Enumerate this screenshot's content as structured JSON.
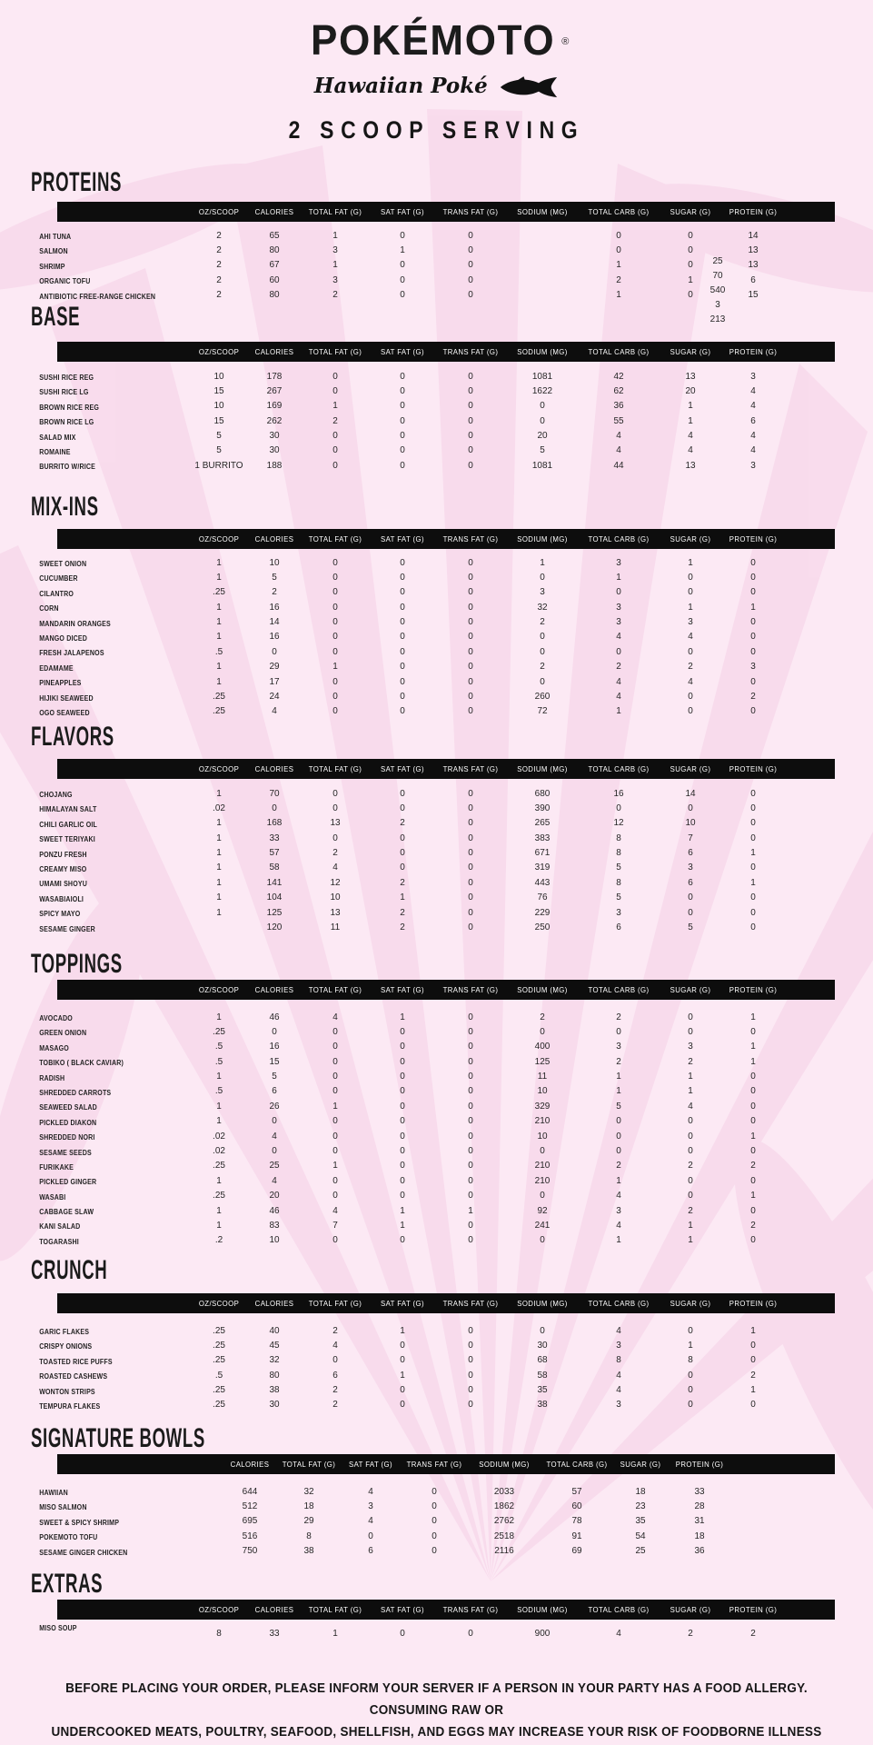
{
  "header": {
    "brand": "POKÉMOTO",
    "registered": "®",
    "tagline": "Hawaiian Poké",
    "serving_title": "2 SCOOP SERVING"
  },
  "icons": {
    "logo_fish": "tuna-fish-icon"
  },
  "colors": {
    "background": "#fce9f4",
    "watermark": "#f5cfe6",
    "header_bar": "#0d0d0d",
    "text": "#1b1b1b"
  },
  "column_sets": {
    "standard": [
      "OZ/SCOOP",
      "CALORIES",
      "TOTAL FAT (G)",
      "SAT FAT (G)",
      "TRANS FAT (G)",
      "SODIUM (MG)",
      "TOTAL CARB (G)",
      "SUGAR (G)",
      "PROTEIN (G)"
    ],
    "bowls": [
      "CALORIES",
      "TOTAL FAT (G)",
      "SAT FAT (G)",
      "TRANS FAT (G)",
      "SODIUM (MG)",
      "TOTAL CARB (G)",
      "SUGAR (G)",
      "PROTEIN (G)"
    ]
  },
  "sections": [
    {
      "id": "proteins",
      "title": "PROTEINS",
      "column_set": "standard",
      "rows": [
        [
          "AHI TUNA",
          "2",
          "65",
          "1",
          "0",
          "0",
          "",
          "0",
          "0",
          "14"
        ],
        [
          "SALMON",
          "2",
          "80",
          "3",
          "1",
          "0",
          "",
          "0",
          "0",
          "13"
        ],
        [
          "SHRIMP",
          "2",
          "67",
          "1",
          "0",
          "0",
          "",
          "1",
          "0",
          "13"
        ],
        [
          "ORGANIC TOFU",
          "2",
          "60",
          "3",
          "0",
          "0",
          "",
          "2",
          "1",
          "6"
        ],
        [
          "ANTIBIOTIC FREE-RANGE CHICKEN",
          "2",
          "80",
          "2",
          "0",
          "0",
          "",
          "1",
          "0",
          "15"
        ]
      ],
      "stray_values": [
        "25",
        "70",
        "540",
        "3",
        "213"
      ]
    },
    {
      "id": "base",
      "title": "BASE",
      "column_set": "standard",
      "rows": [
        [
          "SUSHI RICE REG",
          "10",
          "178",
          "0",
          "0",
          "0",
          "1081",
          "42",
          "13",
          "3"
        ],
        [
          "SUSHI RICE LG",
          "15",
          "267",
          "0",
          "0",
          "0",
          "1622",
          "62",
          "20",
          "4"
        ],
        [
          "BROWN RICE REG",
          "10",
          "169",
          "1",
          "0",
          "0",
          "0",
          "36",
          "1",
          "4"
        ],
        [
          "BROWN RICE LG",
          "15",
          "262",
          "2",
          "0",
          "0",
          "0",
          "55",
          "1",
          "6"
        ],
        [
          "SALAD MIX",
          "5",
          "30",
          "0",
          "0",
          "0",
          "20",
          "4",
          "4",
          "4"
        ],
        [
          "ROMAINE",
          "5",
          "30",
          "0",
          "0",
          "0",
          "5",
          "4",
          "4",
          "4"
        ],
        [
          "BURRITO W/RICE",
          "1 BURRITO",
          "188",
          "0",
          "0",
          "0",
          "1081",
          "44",
          "13",
          "3"
        ]
      ]
    },
    {
      "id": "mixins",
      "title": "MIX-INS",
      "column_set": "standard",
      "rows": [
        [
          "SWEET ONION",
          "1",
          "10",
          "0",
          "0",
          "0",
          "1",
          "3",
          "1",
          "0"
        ],
        [
          "CUCUMBER",
          "1",
          "5",
          "0",
          "0",
          "0",
          "0",
          "1",
          "0",
          "0"
        ],
        [
          "CILANTRO",
          ".25",
          "2",
          "0",
          "0",
          "0",
          "3",
          "0",
          "0",
          "0"
        ],
        [
          "CORN",
          "1",
          "16",
          "0",
          "0",
          "0",
          "32",
          "3",
          "1",
          "1"
        ],
        [
          "MANDARIN ORANGES",
          "1",
          "14",
          "0",
          "0",
          "0",
          "2",
          "3",
          "3",
          "0"
        ],
        [
          "MANGO DICED",
          "1",
          "16",
          "0",
          "0",
          "0",
          "0",
          "4",
          "4",
          "0"
        ],
        [
          "FRESH JALAPENOS",
          ".5",
          "0",
          "0",
          "0",
          "0",
          "0",
          "0",
          "0",
          "0"
        ],
        [
          "EDAMAME",
          "1",
          "29",
          "1",
          "0",
          "0",
          "2",
          "2",
          "2",
          "3"
        ],
        [
          "PINEAPPLES",
          "1",
          "17",
          "0",
          "0",
          "0",
          "0",
          "4",
          "4",
          "0"
        ],
        [
          "HIJIKI SEAWEED",
          ".25",
          "24",
          "0",
          "0",
          "0",
          "260",
          "4",
          "0",
          "2"
        ],
        [
          "OGO SEAWEED",
          ".25",
          "4",
          "0",
          "0",
          "0",
          "72",
          "1",
          "0",
          "0"
        ]
      ]
    },
    {
      "id": "flavors",
      "title": "FLAVORS",
      "column_set": "standard",
      "rows": [
        [
          "CHOJANG",
          "1",
          "70",
          "0",
          "0",
          "0",
          "680",
          "16",
          "14",
          "0"
        ],
        [
          "HIMALAYAN SALT",
          ".02",
          "0",
          "0",
          "0",
          "0",
          "390",
          "0",
          "0",
          "0"
        ],
        [
          "CHILI GARLIC OIL",
          "1",
          "168",
          "13",
          "2",
          "0",
          "265",
          "12",
          "10",
          "0"
        ],
        [
          "SWEET TERIYAKI",
          "1",
          "33",
          "0",
          "0",
          "0",
          "383",
          "8",
          "7",
          "0"
        ],
        [
          "PONZU FRESH",
          "1",
          "57",
          "2",
          "0",
          "0",
          "671",
          "8",
          "6",
          "1"
        ],
        [
          "CREAMY MISO",
          "1",
          "58",
          "4",
          "0",
          "0",
          "319",
          "5",
          "3",
          "0"
        ],
        [
          "UMAMI SHOYU",
          "1",
          "141",
          "12",
          "2",
          "0",
          "443",
          "8",
          "6",
          "1"
        ],
        [
          "WASABIAIOLI",
          "1",
          "104",
          "10",
          "1",
          "0",
          "76",
          "5",
          "0",
          "0"
        ],
        [
          "SPICY MAYO",
          "1",
          "125",
          "13",
          "2",
          "0",
          "229",
          "3",
          "0",
          "0"
        ],
        [
          "SESAME GINGER",
          "",
          "120",
          "11",
          "2",
          "0",
          "250",
          "6",
          "5",
          "0"
        ]
      ]
    },
    {
      "id": "toppings",
      "title": "TOPPINGS",
      "column_set": "standard",
      "rows": [
        [
          "AVOCADO",
          "1",
          "46",
          "4",
          "1",
          "0",
          "2",
          "2",
          "0",
          "1"
        ],
        [
          "GREEN ONION",
          ".25",
          "0",
          "0",
          "0",
          "0",
          "0",
          "0",
          "0",
          "0"
        ],
        [
          "MASAGO",
          ".5",
          "16",
          "0",
          "0",
          "0",
          "400",
          "3",
          "3",
          "1"
        ],
        [
          "TOBIKO ( BLACK CAVIAR)",
          ".5",
          "15",
          "0",
          "0",
          "0",
          "125",
          "2",
          "2",
          "1"
        ],
        [
          "RADISH",
          "1",
          "5",
          "0",
          "0",
          "0",
          "11",
          "1",
          "1",
          "0"
        ],
        [
          "SHREDDED CARROTS",
          ".5",
          "6",
          "0",
          "0",
          "0",
          "10",
          "1",
          "1",
          "0"
        ],
        [
          "SEAWEED SALAD",
          "1",
          "26",
          "1",
          "0",
          "0",
          "329",
          "5",
          "4",
          "0"
        ],
        [
          "PICKLED DIAKON",
          "1",
          "0",
          "0",
          "0",
          "0",
          "210",
          "0",
          "0",
          "0"
        ],
        [
          "SHREDDED NORI",
          ".02",
          "4",
          "0",
          "0",
          "0",
          "10",
          "0",
          "0",
          "1"
        ],
        [
          "SESAME SEEDS",
          ".02",
          "0",
          "0",
          "0",
          "0",
          "0",
          "0",
          "0",
          "0"
        ],
        [
          "FURIKAKE",
          ".25",
          "25",
          "1",
          "0",
          "0",
          "210",
          "2",
          "2",
          "2"
        ],
        [
          "PICKLED GINGER",
          "1",
          "4",
          "0",
          "0",
          "0",
          "210",
          "1",
          "0",
          "0"
        ],
        [
          "WASABI",
          ".25",
          "20",
          "0",
          "0",
          "0",
          "0",
          "4",
          "0",
          "1"
        ],
        [
          "CABBAGE SLAW",
          "1",
          "46",
          "4",
          "1",
          "1",
          "92",
          "3",
          "2",
          "0"
        ],
        [
          "KANI SALAD",
          "1",
          "83",
          "7",
          "1",
          "0",
          "241",
          "4",
          "1",
          "2"
        ],
        [
          "TOGARASHI",
          ".2",
          "10",
          "0",
          "0",
          "0",
          "0",
          "1",
          "1",
          "0"
        ]
      ]
    },
    {
      "id": "crunch",
      "title": "CRUNCH",
      "column_set": "standard",
      "rows": [
        [
          "GARIC FLAKES",
          ".25",
          "40",
          "2",
          "1",
          "0",
          "0",
          "4",
          "0",
          "1"
        ],
        [
          "CRISPY ONIONS",
          ".25",
          "45",
          "4",
          "0",
          "0",
          "30",
          "3",
          "1",
          "0"
        ],
        [
          "TOASTED RICE PUFFS",
          ".25",
          "32",
          "0",
          "0",
          "0",
          "68",
          "8",
          "8",
          "0"
        ],
        [
          "ROASTED CASHEWS",
          ".5",
          "80",
          "6",
          "1",
          "0",
          "58",
          "4",
          "0",
          "2"
        ],
        [
          "WONTON STRIPS",
          ".25",
          "38",
          "2",
          "0",
          "0",
          "35",
          "4",
          "0",
          "1"
        ],
        [
          "TEMPURA FLAKES",
          ".25",
          "30",
          "2",
          "0",
          "0",
          "38",
          "3",
          "0",
          "0"
        ]
      ]
    },
    {
      "id": "bowls",
      "title": "SIGNATURE BOWLS",
      "column_set": "bowls",
      "rows": [
        [
          "HAWIIAN",
          "644",
          "32",
          "4",
          "0",
          "2033",
          "57",
          "18",
          "33"
        ],
        [
          "MISO SALMON",
          "512",
          "18",
          "3",
          "0",
          "1862",
          "60",
          "23",
          "28"
        ],
        [
          "SWEET & SPICY SHRIMP",
          "695",
          "29",
          "4",
          "0",
          "2762",
          "78",
          "35",
          "31"
        ],
        [
          "POKEMOTO TOFU",
          "516",
          "8",
          "0",
          "0",
          "2518",
          "91",
          "54",
          "18"
        ],
        [
          "SESAME GINGER CHICKEN",
          "750",
          "38",
          "6",
          "0",
          "2116",
          "69",
          "25",
          "36"
        ]
      ]
    },
    {
      "id": "extras",
      "title": "EXTRAS",
      "column_set": "standard",
      "rows": [
        [
          "MISO SOUP",
          "8",
          "33",
          "1",
          "0",
          "0",
          "900",
          "4",
          "2",
          "2"
        ]
      ]
    }
  ],
  "footer": {
    "line1": "BEFORE PLACING YOUR ORDER, PLEASE INFORM YOUR SERVER IF A PERSON IN YOUR PARTY HAS A FOOD ALLERGY. CONSUMING RAW OR",
    "line2": "UNDERCOOKED MEATS, POULTRY, SEAFOOD, SHELLFISH, AND EGGS MAY INCREASE YOUR RISK OF FOODBORNE ILLNESS"
  }
}
